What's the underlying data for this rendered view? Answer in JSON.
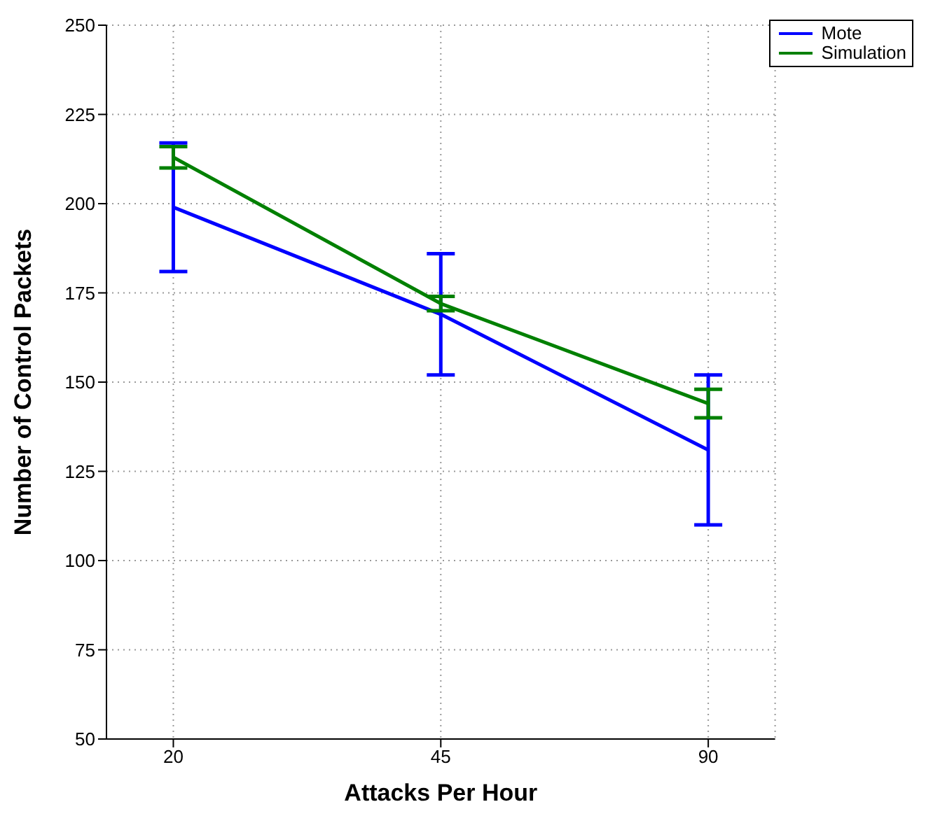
{
  "chart_data": {
    "type": "line",
    "xlabel": "Attacks Per Hour",
    "ylabel": "Number of Control Packets",
    "categories": [
      "20",
      "45",
      "90"
    ],
    "series": [
      {
        "name": "Mote",
        "color": "#0000ff",
        "values": [
          199,
          169,
          131
        ],
        "errors": [
          18,
          17,
          21
        ]
      },
      {
        "name": "Simulation",
        "color": "#008000",
        "values": [
          213,
          172,
          144
        ],
        "errors": [
          3,
          2,
          4
        ]
      }
    ],
    "ylim": [
      50,
      250
    ],
    "yticks": [
      50,
      75,
      100,
      125,
      150,
      175,
      200,
      225,
      250
    ],
    "grid": true,
    "legend": "top right",
    "marker": "none",
    "line_style": "solid"
  }
}
